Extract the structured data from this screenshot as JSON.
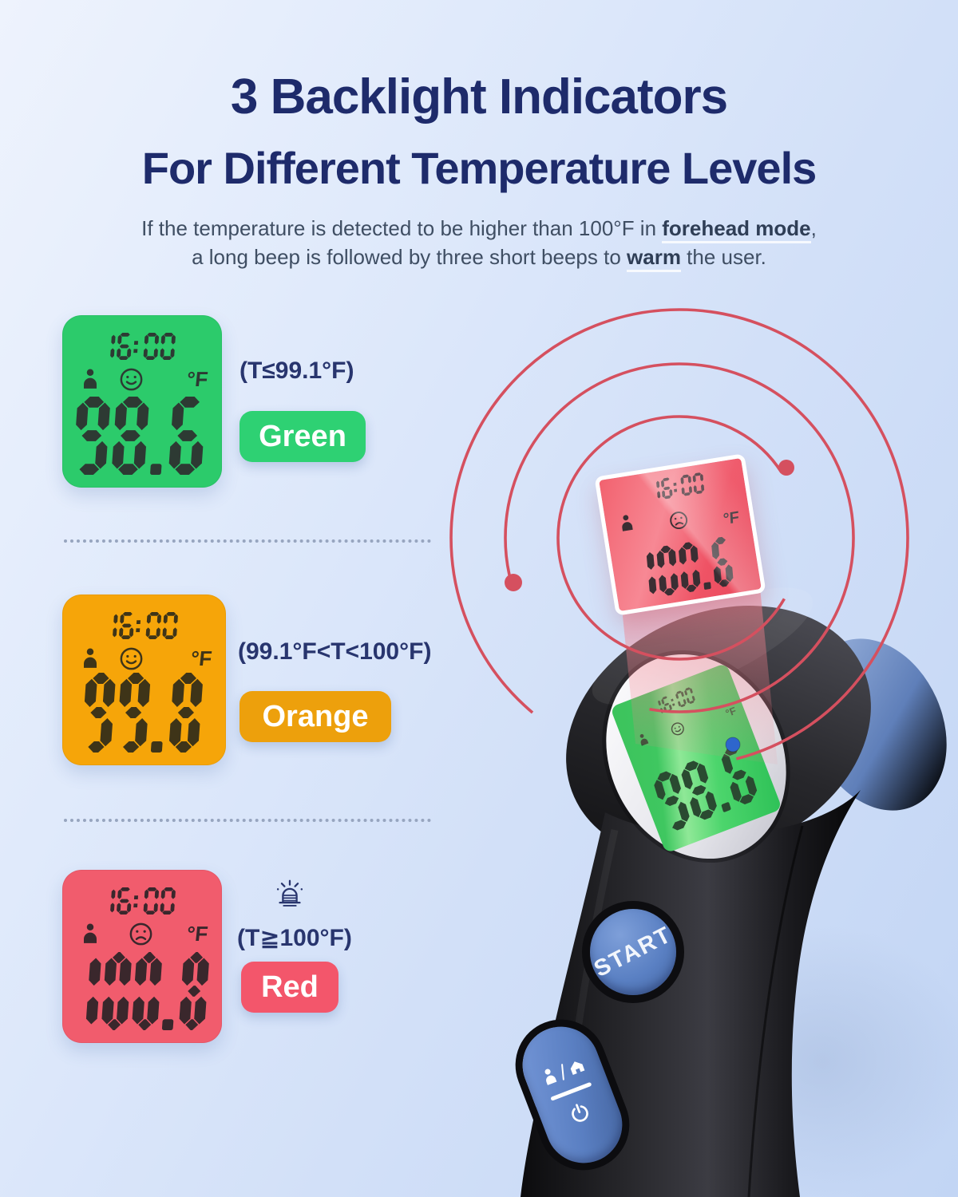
{
  "header": {
    "title_line1": "3 Backlight Indicators",
    "title_line2": "For Different Temperature Levels",
    "subtitle_line1": {
      "prefix": "If the temperature is detected to be higher than 100°F in ",
      "bold": "forehead mode",
      "suffix": ","
    },
    "subtitle_line2": {
      "prefix": "a long beep is followed by three short beeps to ",
      "bold": "warm",
      "suffix": " the user."
    }
  },
  "indicators": [
    {
      "time": "16:00",
      "mood": "happy",
      "unit": "°F",
      "reading": "98.6",
      "range": "(T≤99.1°F)",
      "label": "Green",
      "box_color": "#2CCB6B",
      "button_color": "#2ED173",
      "ink_color": "#2d3a33"
    },
    {
      "time": "16:00",
      "mood": "happy",
      "unit": "°F",
      "reading": "99.8",
      "range": "(99.1°F<T<100°F)",
      "label": "Orange",
      "box_color": "#F6A509",
      "button_color": "#EDA00C",
      "ink_color": "#3e3418"
    },
    {
      "time": "16:00",
      "mood": "sad",
      "unit": "°F",
      "reading": "100.8",
      "range": "(T≧100°F)",
      "label": "Red",
      "box_color": "#F15C6D",
      "button_color": "#F3566B",
      "ink_color": "#3a272c"
    }
  ],
  "thermometer": {
    "floating_display": {
      "time": "16:00",
      "reading": "100.6",
      "unit": "°F",
      "mood": "sad"
    },
    "device_display": {
      "time": "16:00",
      "reading": "98.6",
      "unit": "°F",
      "mood": "happy"
    },
    "start_button": "START"
  },
  "icons": {
    "person": "person-silhouette",
    "happy": "smiley-face",
    "sad": "sad-face",
    "siren": "alarm-light",
    "mode": "person-home-switch",
    "power": "power-symbol"
  },
  "colors": {
    "title": "#1E2B6B",
    "subtitle": "#3F4E63",
    "range_text": "#28356E",
    "arc": "#D5505F",
    "marker_blue": "#2E66CC",
    "device_button": "#5A80C3",
    "background_top": "#EEF3FD",
    "background_bottom": "#C2D5F4"
  }
}
